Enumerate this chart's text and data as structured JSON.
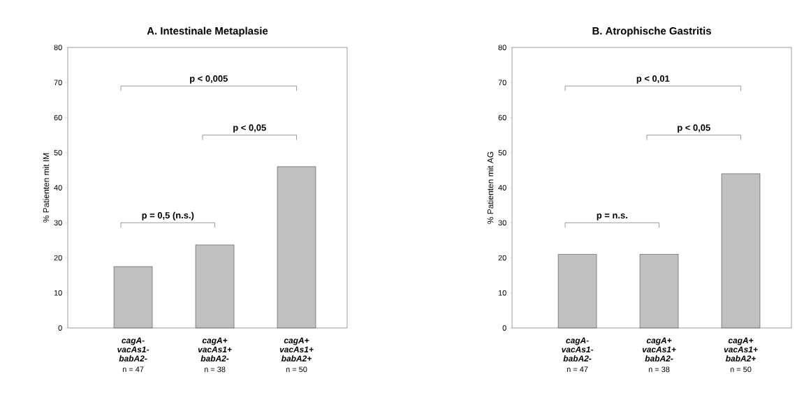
{
  "chart_data": [
    {
      "type": "bar",
      "title": "A. Intestinale Metaplasie",
      "ylabel": "% Patienten mit IM",
      "categories": [
        "cagA- vacAs1- babA2-",
        "cagA+ vacAs1+ babA2-",
        "cagA+ vacAs1+ babA2+"
      ],
      "values": [
        17.5,
        23.7,
        46
      ],
      "color": "#c0c0c0",
      "ylim": [
        0,
        80
      ],
      "yticks": [
        0,
        10,
        20,
        30,
        40,
        50,
        60,
        70,
        80
      ],
      "grid": false,
      "annotations": [
        "p < 0,005",
        "p < 0,05",
        "p = 0,5 (n.s.)",
        "n = 47",
        "n = 38",
        "n = 50"
      ]
    },
    {
      "type": "bar",
      "title": "B. Atrophische Gastritis",
      "ylabel": "% Patienten mit AG",
      "categories": [
        "cagA- vacAs1- babA2-",
        "cagA+ vacAs1+ babA2-",
        "cagA+ vacAs1+ babA2+"
      ],
      "values": [
        21,
        21,
        44
      ],
      "color": "#c0c0c0",
      "ylim": [
        0,
        80
      ],
      "yticks": [
        0,
        10,
        20,
        30,
        40,
        50,
        60,
        70,
        80
      ],
      "grid": false,
      "annotations": [
        "p < 0,01",
        "p < 0,05",
        "p = n.s.",
        "n = 47",
        "n = 38",
        "n = 50"
      ]
    }
  ]
}
